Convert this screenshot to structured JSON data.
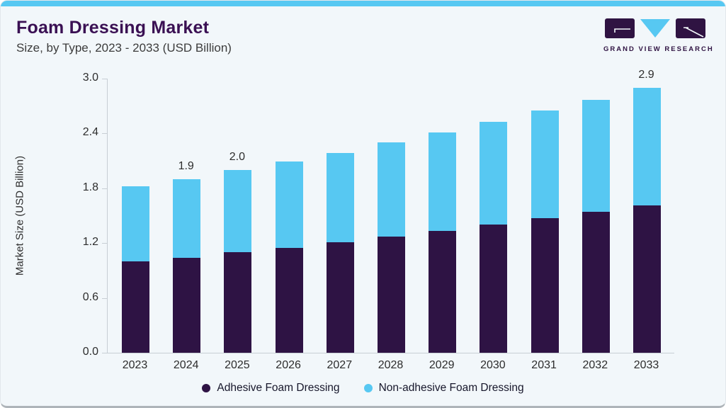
{
  "header": {
    "title": "Foam Dressing Market",
    "subtitle": "Size, by Type, 2023 - 2033 (USD Billion)",
    "logo_text": "GRAND VIEW RESEARCH"
  },
  "colors": {
    "accent_bar": "#57C8F2",
    "adhesive": "#2E1344",
    "non_adhesive": "#57C8F2",
    "title_purple": "#3A1053",
    "axis_line": "#C7CED4",
    "logo_purple": "#2F1342"
  },
  "chart_data": {
    "type": "bar",
    "subtype": "stacked-vertical",
    "title": "Foam Dressing Market",
    "subtitle": "Size, by Type, 2023 - 2033 (USD Billion)",
    "xlabel": "",
    "ylabel": "Market Size (USD Billion)",
    "ylim": [
      0.0,
      3.0
    ],
    "yticks": [
      "0.0",
      "0.6",
      "1.2",
      "1.8",
      "2.4",
      "3.0"
    ],
    "grid": "off",
    "legend_position": "bottom-center",
    "categories": [
      "2023",
      "2024",
      "2025",
      "2026",
      "2027",
      "2028",
      "2029",
      "2030",
      "2031",
      "2032",
      "2033"
    ],
    "series": [
      {
        "name": "Adhesive Foam Dressing",
        "color": "#2E1344",
        "values": [
          1.0,
          1.04,
          1.1,
          1.15,
          1.21,
          1.27,
          1.33,
          1.4,
          1.47,
          1.54,
          1.61
        ]
      },
      {
        "name": "Non-adhesive Foam Dressing",
        "color": "#57C8F2",
        "values": [
          0.82,
          0.86,
          0.9,
          0.94,
          0.98,
          1.03,
          1.08,
          1.13,
          1.18,
          1.23,
          1.29
        ]
      }
    ],
    "totals": [
      1.82,
      1.9,
      2.0,
      2.09,
      2.19,
      2.3,
      2.41,
      2.53,
      2.65,
      2.77,
      2.9
    ],
    "bar_labels": {
      "2024": "1.9",
      "2025": "2.0",
      "2033": "2.9"
    }
  }
}
